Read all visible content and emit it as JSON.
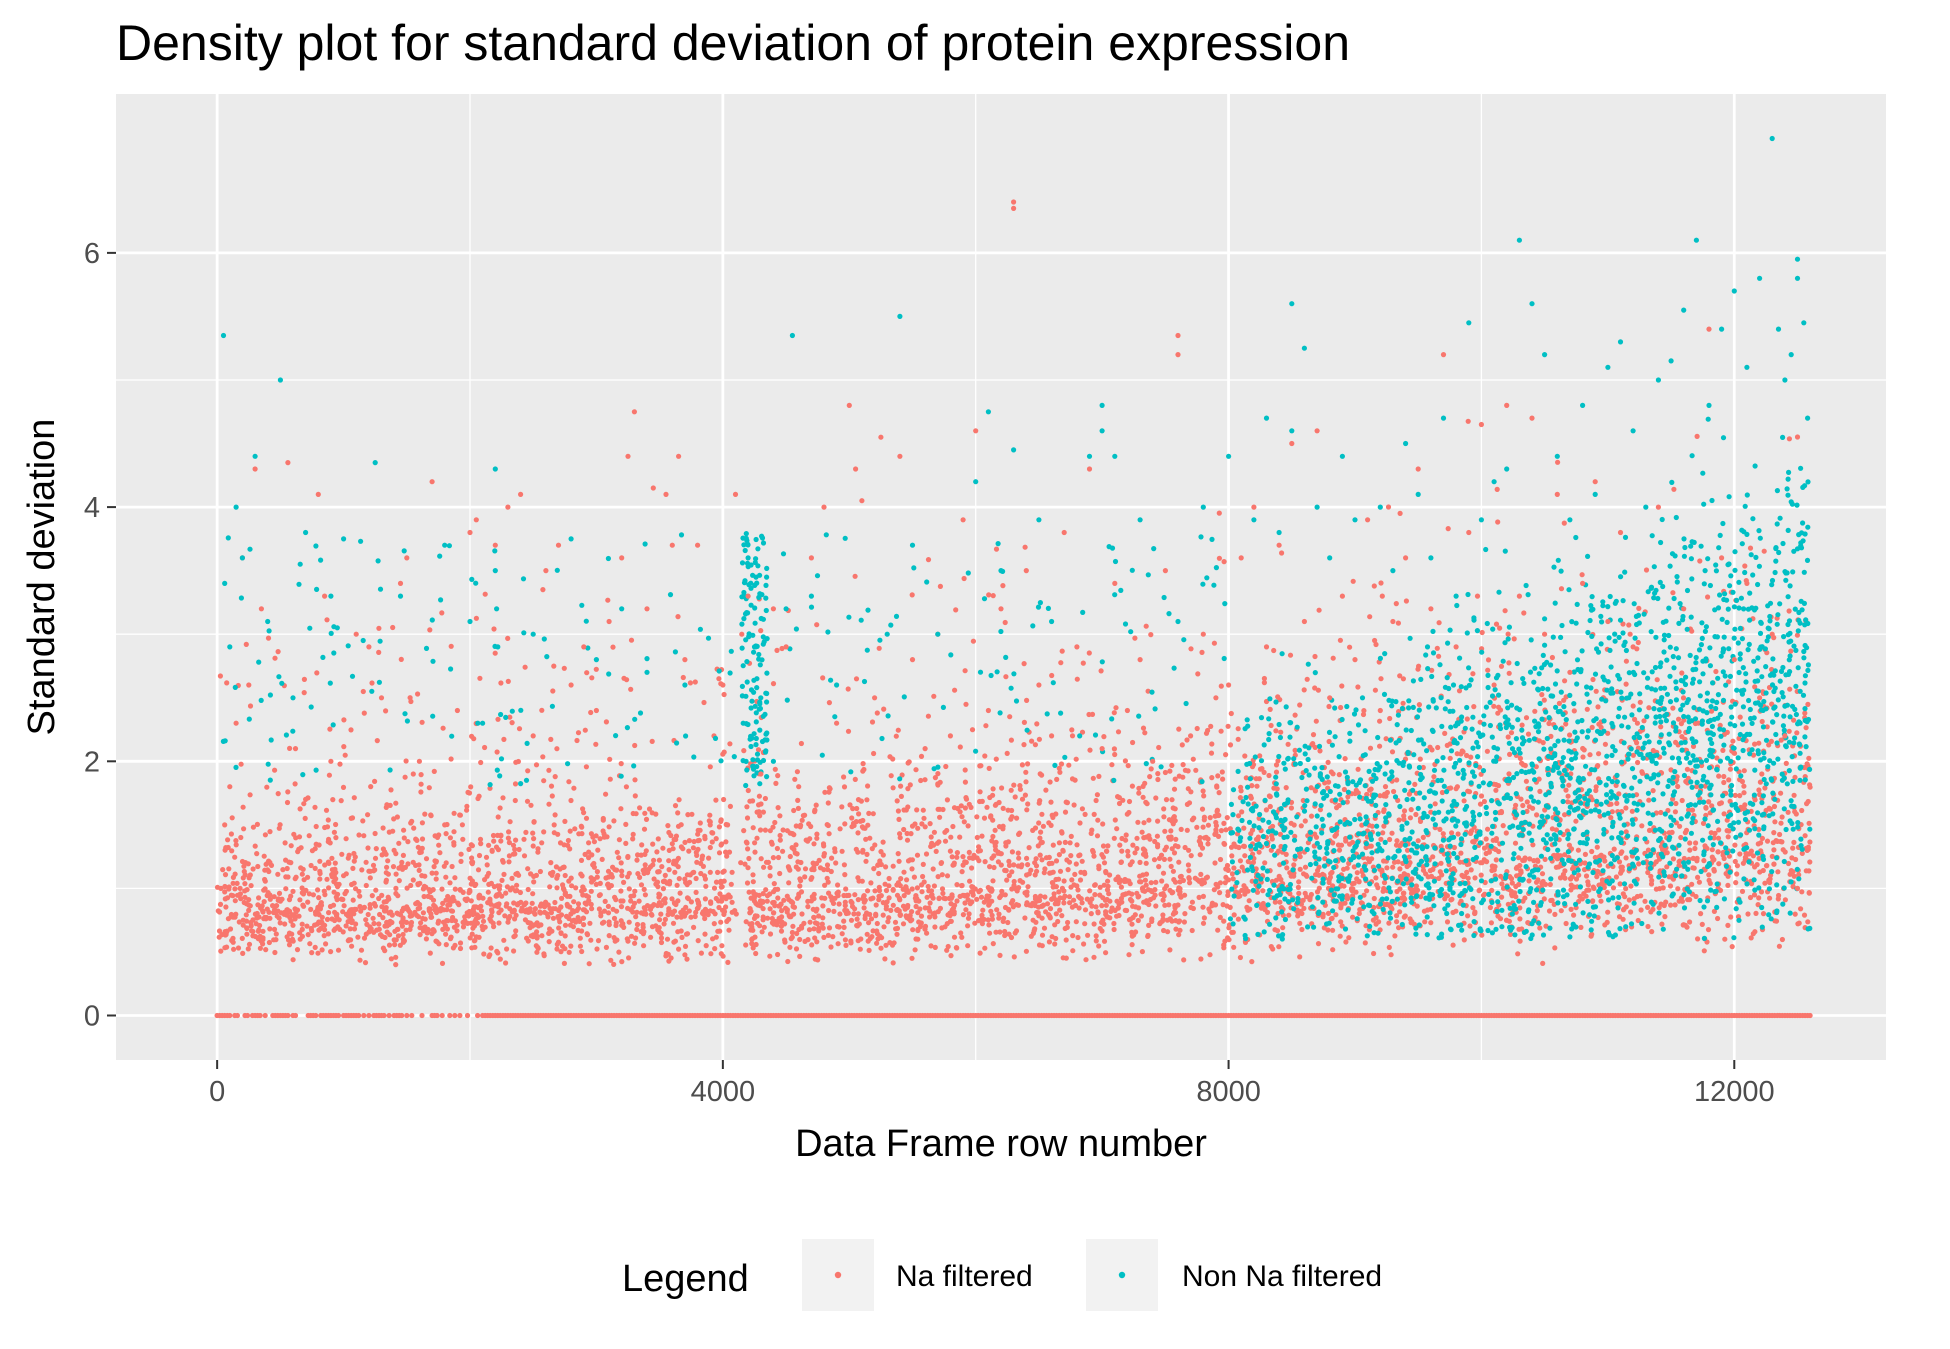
{
  "chart_data": {
    "type": "scatter",
    "title": "Density plot for standard deviation of protein expression",
    "xlabel": "Data Frame row number",
    "ylabel": "Standard deviation",
    "xlim": [
      -800,
      13200
    ],
    "ylim": [
      -0.35,
      7.25
    ],
    "x_ticks": [
      0,
      4000,
      8000,
      12000
    ],
    "x_tick_labels": [
      "0",
      "4000",
      "8000",
      "12000"
    ],
    "y_ticks": [
      0,
      2,
      4,
      6
    ],
    "y_tick_labels": [
      "0",
      "2",
      "4",
      "6"
    ],
    "grid": true,
    "background": "#ebebeb",
    "legend": {
      "title": "Legend",
      "position": "bottom",
      "entries": [
        "Na filtered",
        "Non Na filtered"
      ]
    },
    "colors": {
      "Na filtered": "#f8766d",
      "Non Na filtered": "#00bfc4"
    },
    "x_extent": [
      0,
      12600
    ],
    "series": [
      {
        "name": "Na filtered",
        "color": "#f8766d",
        "points": [
          [
            30,
            1.0
          ],
          [
            60,
            1.5
          ],
          [
            100,
            1.8
          ],
          [
            150,
            2.3
          ],
          [
            200,
            3.6
          ],
          [
            250,
            2.6
          ],
          [
            300,
            4.3
          ],
          [
            350,
            3.2
          ],
          [
            400,
            1.2
          ],
          [
            500,
            0.9
          ],
          [
            560,
            4.35
          ],
          [
            620,
            2.1
          ],
          [
            700,
            1.7
          ],
          [
            800,
            4.1
          ],
          [
            850,
            3.3
          ],
          [
            900,
            2.0
          ],
          [
            1000,
            1.1
          ],
          [
            1100,
            3.0
          ],
          [
            1200,
            2.9
          ],
          [
            1300,
            2.5
          ],
          [
            1400,
            1.3
          ],
          [
            1450,
            3.4
          ],
          [
            1500,
            3.6
          ],
          [
            1600,
            2.0
          ],
          [
            1700,
            4.2
          ],
          [
            1800,
            1.5
          ],
          [
            1900,
            2.4
          ],
          [
            2000,
            3.8
          ],
          [
            2050,
            3.9
          ],
          [
            2200,
            3.7
          ],
          [
            2300,
            4.0
          ],
          [
            2400,
            4.1
          ],
          [
            2500,
            2.2
          ],
          [
            2600,
            3.5
          ],
          [
            2700,
            3.7
          ],
          [
            2800,
            2.6
          ],
          [
            2900,
            2.9
          ],
          [
            3000,
            2.4
          ],
          [
            3100,
            3.1
          ],
          [
            3200,
            3.6
          ],
          [
            3250,
            4.4
          ],
          [
            3300,
            4.75
          ],
          [
            3400,
            3.2
          ],
          [
            3450,
            4.15
          ],
          [
            3550,
            4.1
          ],
          [
            3600,
            3.7
          ],
          [
            3650,
            4.4
          ],
          [
            3700,
            2.8
          ],
          [
            3800,
            3.7
          ],
          [
            3900,
            1.5
          ],
          [
            4000,
            2.6
          ],
          [
            4100,
            4.1
          ],
          [
            4150,
            3.0
          ],
          [
            4200,
            3.3
          ],
          [
            4300,
            1.9
          ],
          [
            4400,
            3.2
          ],
          [
            4500,
            2.9
          ],
          [
            4600,
            1.8
          ],
          [
            4700,
            3.6
          ],
          [
            4800,
            4.0
          ],
          [
            4900,
            2.3
          ],
          [
            5000,
            4.8
          ],
          [
            5050,
            4.3
          ],
          [
            5100,
            4.05
          ],
          [
            5200,
            2.5
          ],
          [
            5250,
            4.55
          ],
          [
            5400,
            4.4
          ],
          [
            5500,
            2.8
          ],
          [
            5600,
            2.1
          ],
          [
            5700,
            3.0
          ],
          [
            5800,
            2.2
          ],
          [
            5900,
            3.9
          ],
          [
            6000,
            4.6
          ],
          [
            6100,
            2.4
          ],
          [
            6200,
            3.2
          ],
          [
            6300,
            6.4
          ],
          [
            6300,
            6.35
          ],
          [
            6400,
            3.5
          ],
          [
            6500,
            2.6
          ],
          [
            6600,
            2.2
          ],
          [
            6700,
            3.8
          ],
          [
            6800,
            2.9
          ],
          [
            6900,
            4.3
          ],
          [
            7000,
            2.1
          ],
          [
            7100,
            3.4
          ],
          [
            7200,
            2.4
          ],
          [
            7300,
            2.8
          ],
          [
            7400,
            2.0
          ],
          [
            7500,
            3.5
          ],
          [
            7600,
            5.35
          ],
          [
            7600,
            5.2
          ],
          [
            7700,
            2.2
          ],
          [
            7800,
            3.0
          ],
          [
            7900,
            2.5
          ],
          [
            8000,
            2.6
          ],
          [
            8100,
            3.6
          ],
          [
            8200,
            4.0
          ],
          [
            8300,
            2.9
          ],
          [
            8400,
            3.7
          ],
          [
            8500,
            4.5
          ],
          [
            8600,
            3.1
          ],
          [
            8700,
            4.6
          ],
          [
            8800,
            2.5
          ],
          [
            8900,
            3.3
          ],
          [
            9000,
            2.8
          ],
          [
            9100,
            3.9
          ],
          [
            9200,
            2.4
          ],
          [
            9300,
            3.1
          ],
          [
            9400,
            3.6
          ],
          [
            9500,
            4.3
          ],
          [
            9600,
            3.2
          ],
          [
            9700,
            5.2
          ],
          [
            9800,
            2.9
          ],
          [
            9900,
            3.8
          ],
          [
            10000,
            4.65
          ],
          [
            10100,
            2.6
          ],
          [
            10200,
            4.8
          ],
          [
            10300,
            3.3
          ],
          [
            10400,
            4.7
          ],
          [
            10500,
            3.0
          ],
          [
            10600,
            4.1
          ],
          [
            10700,
            2.7
          ],
          [
            10800,
            3.4
          ],
          [
            10900,
            4.2
          ],
          [
            11000,
            3.1
          ],
          [
            11100,
            3.8
          ],
          [
            11200,
            2.9
          ],
          [
            11400,
            4.0
          ],
          [
            11600,
            3.2
          ],
          [
            11800,
            5.4
          ],
          [
            11900,
            3.6
          ],
          [
            12000,
            2.8
          ],
          [
            12100,
            3.4
          ],
          [
            12200,
            2.5
          ],
          [
            12300,
            3.0
          ],
          [
            12400,
            2.2
          ],
          [
            12500,
            1.0
          ]
        ]
      },
      {
        "name": "Non Na filtered",
        "color": "#00bfc4",
        "points": [
          [
            50,
            5.35
          ],
          [
            60,
            3.4
          ],
          [
            100,
            2.9
          ],
          [
            150,
            4.0
          ],
          [
            200,
            3.6
          ],
          [
            300,
            4.4
          ],
          [
            400,
            3.1
          ],
          [
            500,
            5.0
          ],
          [
            600,
            2.5
          ],
          [
            700,
            3.8
          ],
          [
            900,
            3.3
          ],
          [
            1000,
            3.75
          ],
          [
            1250,
            4.35
          ],
          [
            1450,
            3.3
          ],
          [
            1800,
            3.7
          ],
          [
            2000,
            3.1
          ],
          [
            2100,
            2.3
          ],
          [
            2200,
            3.5
          ],
          [
            2200,
            4.3
          ],
          [
            2210,
            3.2
          ],
          [
            2220,
            2.9
          ],
          [
            2500,
            3.0
          ],
          [
            2800,
            3.75
          ],
          [
            3000,
            2.8
          ],
          [
            3200,
            3.2
          ],
          [
            3400,
            2.7
          ],
          [
            3700,
            2.6
          ],
          [
            4200,
            3.6
          ],
          [
            4250,
            2.9
          ],
          [
            4300,
            2.5
          ],
          [
            4400,
            2.0
          ],
          [
            4500,
            3.2
          ],
          [
            4550,
            5.35
          ],
          [
            4700,
            3.3
          ],
          [
            4900,
            2.6
          ],
          [
            5300,
            3.0
          ],
          [
            5400,
            5.5
          ],
          [
            5500,
            3.7
          ],
          [
            5700,
            3.0
          ],
          [
            6000,
            4.2
          ],
          [
            6100,
            4.75
          ],
          [
            6200,
            3.5
          ],
          [
            6300,
            4.45
          ],
          [
            6500,
            3.9
          ],
          [
            6600,
            3.1
          ],
          [
            6900,
            4.4
          ],
          [
            7000,
            4.8
          ],
          [
            7000,
            4.6
          ],
          [
            7100,
            4.4
          ],
          [
            7300,
            3.9
          ],
          [
            7600,
            3.1
          ],
          [
            7800,
            4.0
          ],
          [
            8000,
            4.4
          ],
          [
            8200,
            3.9
          ],
          [
            8300,
            4.7
          ],
          [
            8400,
            3.8
          ],
          [
            8500,
            4.6
          ],
          [
            8500,
            5.6
          ],
          [
            8600,
            5.25
          ],
          [
            8700,
            4.0
          ],
          [
            8800,
            3.6
          ],
          [
            8900,
            4.4
          ],
          [
            9000,
            3.9
          ],
          [
            9200,
            4.0
          ],
          [
            9300,
            3.5
          ],
          [
            9400,
            4.5
          ],
          [
            9500,
            4.1
          ],
          [
            9600,
            3.6
          ],
          [
            9700,
            4.7
          ],
          [
            9800,
            3.3
          ],
          [
            9900,
            5.45
          ],
          [
            10000,
            3.9
          ],
          [
            10100,
            4.2
          ],
          [
            10200,
            4.3
          ],
          [
            10300,
            6.1
          ],
          [
            10400,
            5.6
          ],
          [
            10500,
            5.2
          ],
          [
            10600,
            4.4
          ],
          [
            10700,
            3.9
          ],
          [
            10800,
            4.8
          ],
          [
            10900,
            4.1
          ],
          [
            11000,
            5.1
          ],
          [
            11100,
            5.3
          ],
          [
            11200,
            4.6
          ],
          [
            11300,
            4.0
          ],
          [
            11400,
            5.0
          ],
          [
            11500,
            5.15
          ],
          [
            11600,
            5.55
          ],
          [
            11700,
            6.1
          ],
          [
            11800,
            4.8
          ],
          [
            11900,
            5.4
          ],
          [
            12000,
            5.7
          ],
          [
            12100,
            5.1
          ],
          [
            12200,
            5.8
          ],
          [
            12300,
            6.9
          ],
          [
            12350,
            5.4
          ],
          [
            12400,
            5.0
          ],
          [
            12450,
            5.2
          ],
          [
            12500,
            5.95
          ],
          [
            12500,
            5.8
          ],
          [
            12550,
            5.45
          ],
          [
            12580,
            4.7
          ]
        ]
      }
    ]
  }
}
